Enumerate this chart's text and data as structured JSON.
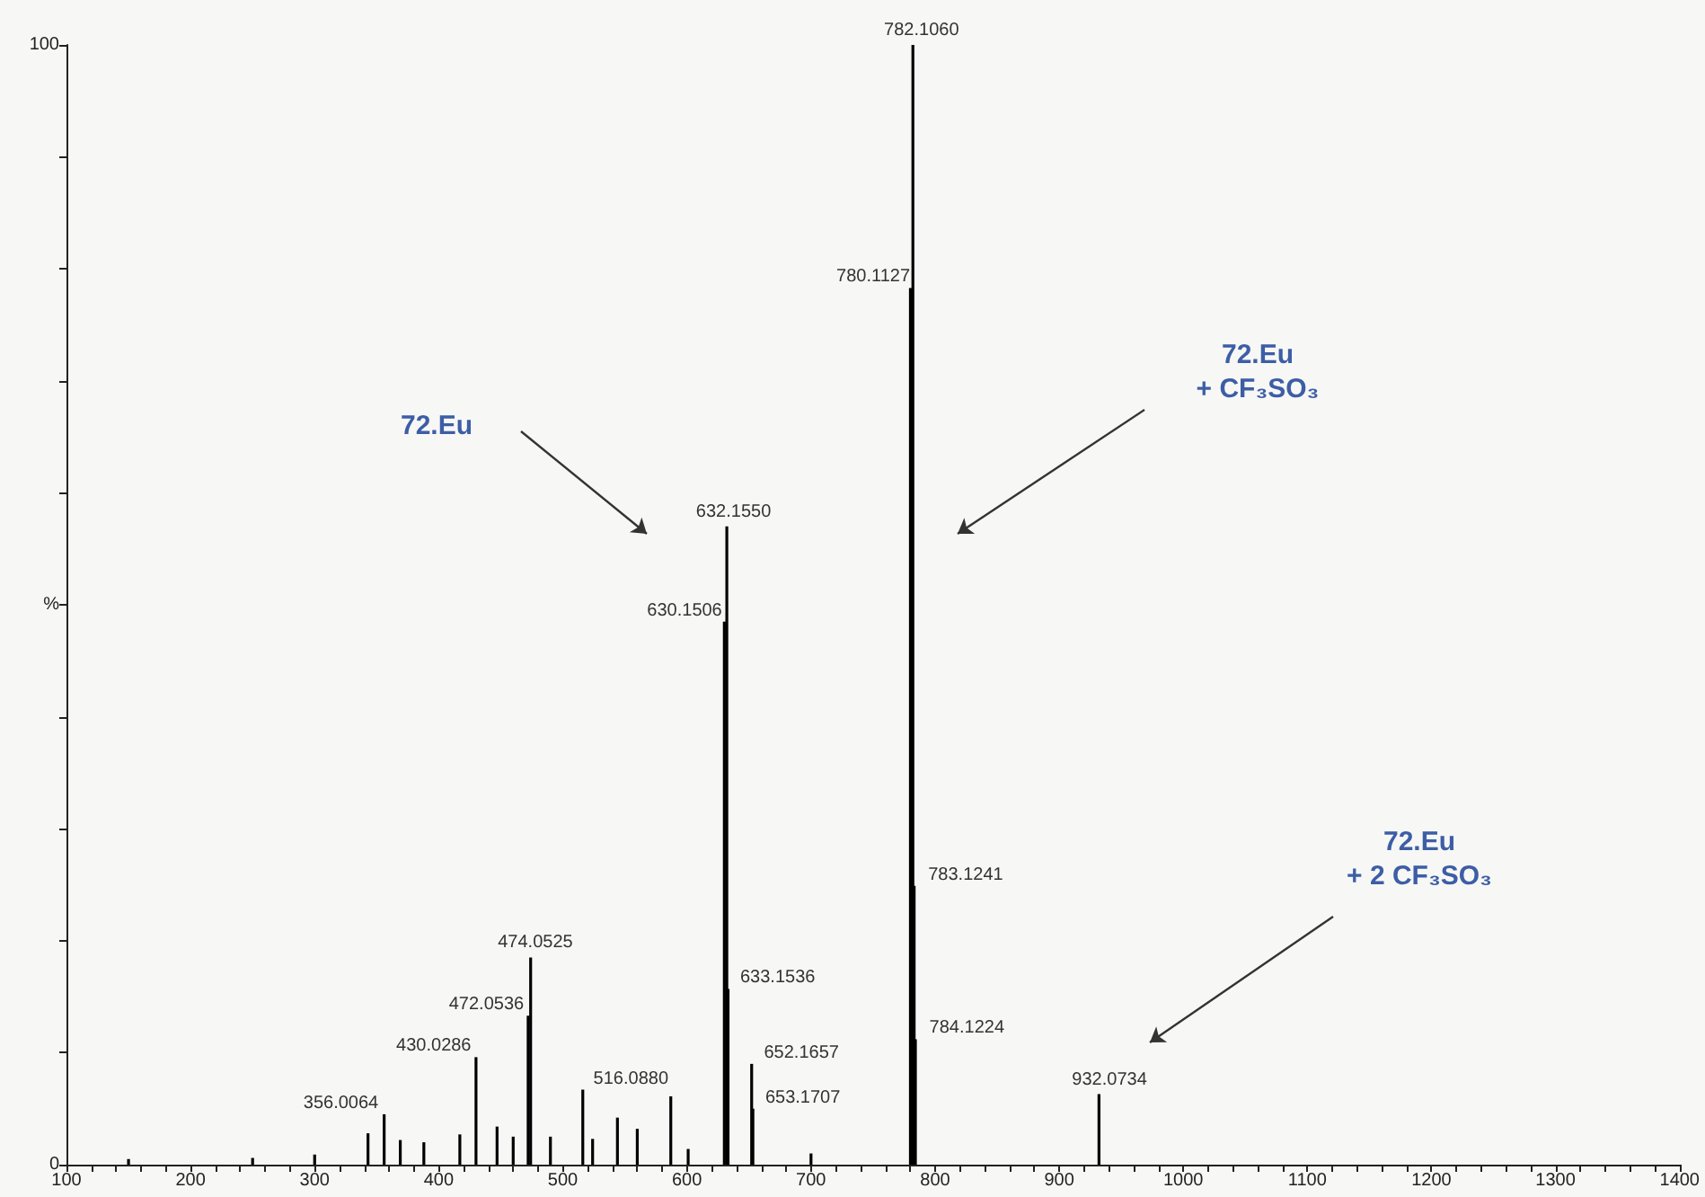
{
  "chart_data": {
    "type": "bar",
    "x": [
      150,
      250,
      300,
      343,
      356.0064,
      369,
      388,
      417,
      430.0286,
      447,
      460,
      472.0536,
      474.0525,
      490,
      516.088,
      524,
      544,
      560,
      587,
      601,
      630.1506,
      632.155,
      633.1536,
      652.1657,
      653.1707,
      700,
      780.1127,
      782.106,
      783.1241,
      784.1224,
      932.0734
    ],
    "series": [
      {
        "color": "#000000",
        "values": [
          0.5,
          0.6,
          0.9,
          2.8,
          4.5,
          2.2,
          2.0,
          2.7,
          9.6,
          3.4,
          2.5,
          13.3,
          18.5,
          2.5,
          6.7,
          2.3,
          4.2,
          3.2,
          6.1,
          1.4,
          48.5,
          57.0,
          15.7,
          9.0,
          5.0,
          1.0,
          78.3,
          100,
          24.9,
          11.2,
          6.3
        ]
      }
    ],
    "xlim": [
      100,
      1400
    ],
    "xticks": [
      100,
      {
        "value": 120,
        "label": null
      },
      {
        "value": 140,
        "label": null
      },
      {
        "value": 160,
        "label": null
      },
      {
        "value": 180,
        "label": null
      },
      200,
      {
        "value": 220,
        "label": null
      },
      {
        "value": 240,
        "label": null
      },
      {
        "value": 260,
        "label": null
      },
      {
        "value": 280,
        "label": null
      },
      300,
      {
        "value": 320,
        "label": null
      },
      {
        "value": 340,
        "label": null
      },
      {
        "value": 360,
        "label": null
      },
      {
        "value": 380,
        "label": null
      },
      400,
      {
        "value": 420,
        "label": null
      },
      {
        "value": 440,
        "label": null
      },
      {
        "value": 460,
        "label": null
      },
      {
        "value": 480,
        "label": null
      },
      500,
      {
        "value": 520,
        "label": null
      },
      {
        "value": 540,
        "label": null
      },
      {
        "value": 560,
        "label": null
      },
      {
        "value": 580,
        "label": null
      },
      600,
      {
        "value": 620,
        "label": null
      },
      {
        "value": 640,
        "label": null
      },
      {
        "value": 660,
        "label": null
      },
      {
        "value": 680,
        "label": null
      },
      700,
      {
        "value": 720,
        "label": null
      },
      {
        "value": 740,
        "label": null
      },
      {
        "value": 760,
        "label": null
      },
      {
        "value": 780,
        "label": null
      },
      800,
      {
        "value": 820,
        "label": null
      },
      {
        "value": 840,
        "label": null
      },
      {
        "value": 860,
        "label": null
      },
      {
        "value": 880,
        "label": null
      },
      900,
      {
        "value": 920,
        "label": null
      },
      {
        "value": 940,
        "label": null
      },
      {
        "value": 960,
        "label": null
      },
      {
        "value": 980,
        "label": null
      },
      1000,
      {
        "value": 1020,
        "label": null
      },
      {
        "value": 1040,
        "label": null
      },
      {
        "value": 1060,
        "label": null
      },
      {
        "value": 1080,
        "label": null
      },
      1100,
      {
        "value": 1120,
        "label": null
      },
      {
        "value": 1140,
        "label": null
      },
      {
        "value": 1160,
        "label": null
      },
      {
        "value": 1180,
        "label": null
      },
      1200,
      {
        "value": 1220,
        "label": null
      },
      {
        "value": 1240,
        "label": null
      },
      {
        "value": 1260,
        "label": null
      },
      {
        "value": 1280,
        "label": null
      },
      1300,
      {
        "value": 1320,
        "label": null
      },
      {
        "value": 1340,
        "label": null
      },
      {
        "value": 1360,
        "label": null
      },
      {
        "value": 1380,
        "label": null
      },
      1400
    ],
    "ylim": [
      0,
      100
    ],
    "yticks": [
      0,
      {
        "value": 10,
        "label": null
      },
      {
        "value": 20,
        "label": null
      },
      {
        "value": 30,
        "label": null
      },
      {
        "value": 40,
        "label": null
      },
      {
        "value": 50,
        "label": "%"
      },
      {
        "value": 60,
        "label": null
      },
      {
        "value": 70,
        "label": null
      },
      {
        "value": 80,
        "label": null
      },
      {
        "value": 90,
        "label": null
      },
      100
    ],
    "annotations": [
      "72.Eu",
      "72.Eu\n+ CF₃SO₃",
      "72.Eu\n+ 2 CF₃SO₃",
      {
        "text": "356.0064",
        "x": 356.0064,
        "y": 4.5
      },
      {
        "text": "430.0286",
        "x": 430.0286,
        "y": 9.6
      },
      {
        "text": "472.0536",
        "x": 472.0536,
        "y": 13.3
      },
      {
        "text": "474.0525",
        "x": 474.0525,
        "y": 18.5
      },
      {
        "text": "516.0880",
        "x": 516.088,
        "y": 6.7
      },
      {
        "text": "630.1506",
        "x": 630.1506,
        "y": 48.5
      },
      {
        "text": "632.1550",
        "x": 632.155,
        "y": 57.0
      },
      {
        "text": "633.1536",
        "x": 633.1536,
        "y": 15.7
      },
      {
        "text": "652.1657",
        "x": 652.1657,
        "y": 9.0
      },
      {
        "text": "653.1707",
        "x": 653.1707,
        "y": 5.0
      },
      {
        "text": "780.1127",
        "x": 780.1127,
        "y": 78.3
      },
      {
        "text": "782.1060",
        "x": 782.106,
        "y": 100
      },
      {
        "text": "783.1241",
        "x": 783.1241,
        "y": 24.9
      },
      {
        "text": "784.1224",
        "x": 784.1224,
        "y": 11.2
      },
      {
        "text": "932.0734",
        "x": 932.0734,
        "y": 6.3
      }
    ],
    "grid": false
  }
}
